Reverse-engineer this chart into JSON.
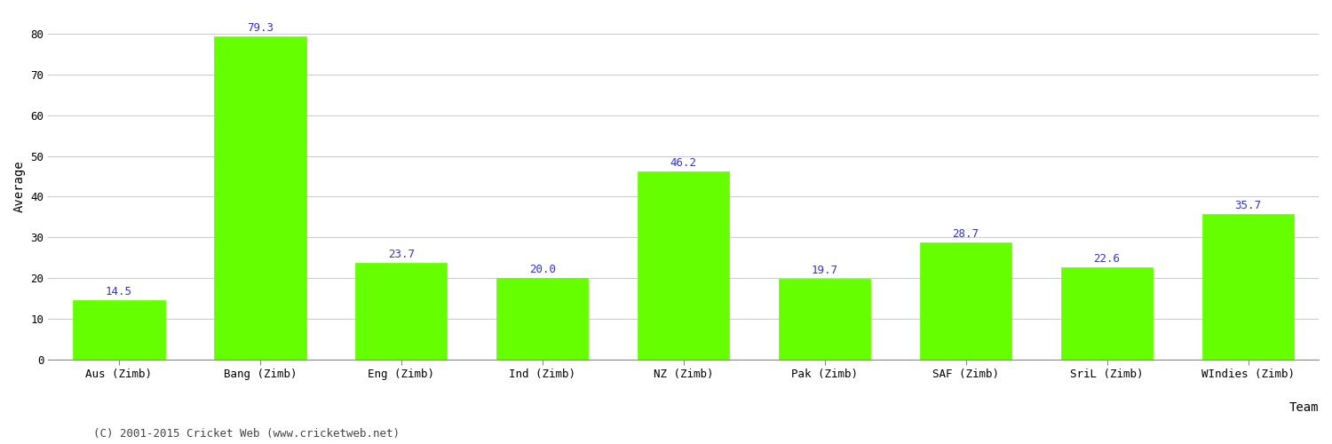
{
  "categories": [
    "Aus (Zimb)",
    "Bang (Zimb)",
    "Eng (Zimb)",
    "Ind (Zimb)",
    "NZ (Zimb)",
    "Pak (Zimb)",
    "SAF (Zimb)",
    "SriL (Zimb)",
    "WIndies (Zimb)"
  ],
  "values": [
    14.5,
    79.3,
    23.7,
    20.0,
    46.2,
    19.7,
    28.7,
    22.6,
    35.7
  ],
  "bar_color": "#66ff00",
  "bar_edgecolor": "#66ff00",
  "label_color": "#3333cc",
  "xlabel": "Team",
  "ylabel": "Average",
  "ylim": [
    0,
    85
  ],
  "yticks": [
    0,
    10,
    20,
    30,
    40,
    50,
    60,
    70,
    80
  ],
  "background_color": "#ffffff",
  "grid_color": "#cccccc",
  "footer_text": "(C) 2001-2015 Cricket Web (www.cricketweb.net)",
  "footer_color": "#444444",
  "label_fontsize": 9,
  "axis_label_fontsize": 10,
  "tick_fontsize": 9,
  "footer_fontsize": 9
}
